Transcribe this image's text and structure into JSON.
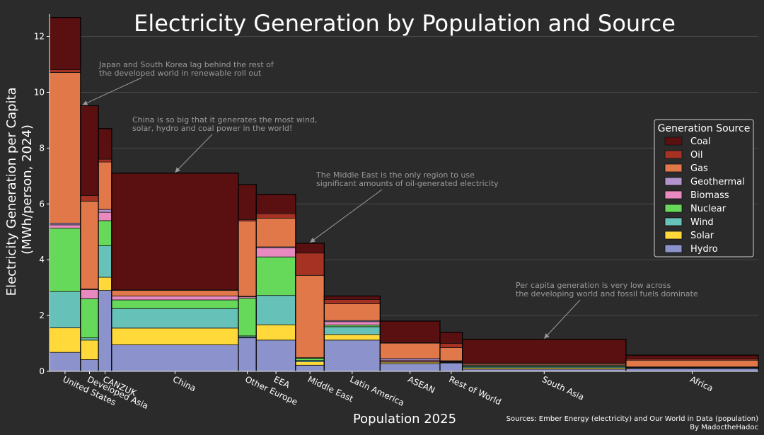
{
  "chart_data": {
    "type": "bar",
    "subtype": "variable-width stacked bar (marimekko)",
    "title": "Electricity Generation by Population and Source",
    "xlabel": "Population 2025",
    "ylabel": "Electricity Generation per Capita (MWh/person, 2024)",
    "ylabel_lines": [
      "Electricity Generation per Capita",
      "(MWh/person, 2024)"
    ],
    "ylim": [
      0,
      12.8
    ],
    "yticks": [
      0,
      2,
      4,
      6,
      8,
      10,
      12
    ],
    "grid": "horizontal",
    "legend": {
      "title": "Generation Source",
      "placement": "right"
    },
    "stack_order": [
      "Hydro",
      "Solar",
      "Wind",
      "Nuclear",
      "Biomass",
      "Geothermal",
      "Gas",
      "Oil",
      "Coal"
    ],
    "legend_order": [
      "Coal",
      "Oil",
      "Gas",
      "Geothermal",
      "Biomass",
      "Nuclear",
      "Wind",
      "Solar",
      "Hydro"
    ],
    "colors": {
      "Coal": "#5a1010",
      "Oil": "#a63224",
      "Gas": "#e0784a",
      "Geothermal": "#b294cc",
      "Biomass": "#e88ac0",
      "Nuclear": "#66d95a",
      "Wind": "#66c2b8",
      "Solar": "#ffd93a",
      "Hydro": "#8c93cc"
    },
    "population_unit": "millions",
    "categories": [
      "United States",
      "Developed Asia",
      "CANZUK",
      "China",
      "Other Europe",
      "EEA",
      "Middle East",
      "Latin America",
      "ASEAN",
      "Rest of World",
      "South Asia",
      "Africa"
    ],
    "population": [
      347,
      200,
      148,
      1417,
      200,
      440,
      320,
      625,
      670,
      250,
      1830,
      1480
    ],
    "series": [
      {
        "name": "Hydro",
        "values": [
          0.68,
          0.42,
          2.9,
          0.95,
          1.2,
          1.12,
          0.22,
          1.12,
          0.28,
          0.3,
          0.08,
          0.1
        ]
      },
      {
        "name": "Solar",
        "values": [
          0.88,
          0.7,
          0.47,
          0.6,
          0.02,
          0.55,
          0.12,
          0.2,
          0.05,
          0.02,
          0.05,
          0.02
        ]
      },
      {
        "name": "Wind",
        "values": [
          1.3,
          0.08,
          1.13,
          0.7,
          0.05,
          1.05,
          0.05,
          0.28,
          0.02,
          0.02,
          0.04,
          0.01
        ]
      },
      {
        "name": "Nuclear",
        "values": [
          2.27,
          1.4,
          0.9,
          0.31,
          1.35,
          1.38,
          0.08,
          0.06,
          0.0,
          0.02,
          0.03,
          0.01
        ]
      },
      {
        "name": "Biomass",
        "values": [
          0.12,
          0.33,
          0.3,
          0.14,
          0.05,
          0.33,
          0.02,
          0.12,
          0.05,
          0.02,
          0.03,
          0.01
        ]
      },
      {
        "name": "Geothermal",
        "values": [
          0.06,
          0.02,
          0.1,
          0.0,
          0.02,
          0.03,
          0.0,
          0.04,
          0.06,
          0.0,
          0.0,
          0.01
        ]
      },
      {
        "name": "Gas",
        "values": [
          5.4,
          3.15,
          1.7,
          0.2,
          2.7,
          1.03,
          2.95,
          0.6,
          0.55,
          0.47,
          0.05,
          0.24
        ]
      },
      {
        "name": "Oil",
        "values": [
          0.1,
          0.2,
          0.1,
          0.02,
          0.05,
          0.16,
          0.8,
          0.15,
          0.02,
          0.15,
          0.02,
          0.05
        ]
      },
      {
        "name": "Coal",
        "values": [
          1.87,
          3.22,
          1.1,
          4.18,
          1.25,
          0.69,
          0.35,
          0.13,
          0.77,
          0.4,
          0.85,
          0.13
        ]
      }
    ],
    "annotations": [
      {
        "lines": [
          "Japan and South Korea lag behind the rest of",
          "the developed world in renewable roll out"
        ],
        "target": "Developed Asia"
      },
      {
        "lines": [
          "China is so big that it generates the most wind,",
          "solar, hydro and coal power in the world!"
        ],
        "target": "China"
      },
      {
        "lines": [
          "The Middle East is the only region to use",
          "significant amounts of oil-generated electricity"
        ],
        "target": "Middle East"
      },
      {
        "lines": [
          "Per capita generation is very low across",
          "the developing world and fossil fuels dominate"
        ],
        "target": "South Asia"
      }
    ],
    "sources": [
      "Sources: Ember Energy (electricity) and Our World in Data (population)",
      "By MadoctheHadoc"
    ]
  }
}
